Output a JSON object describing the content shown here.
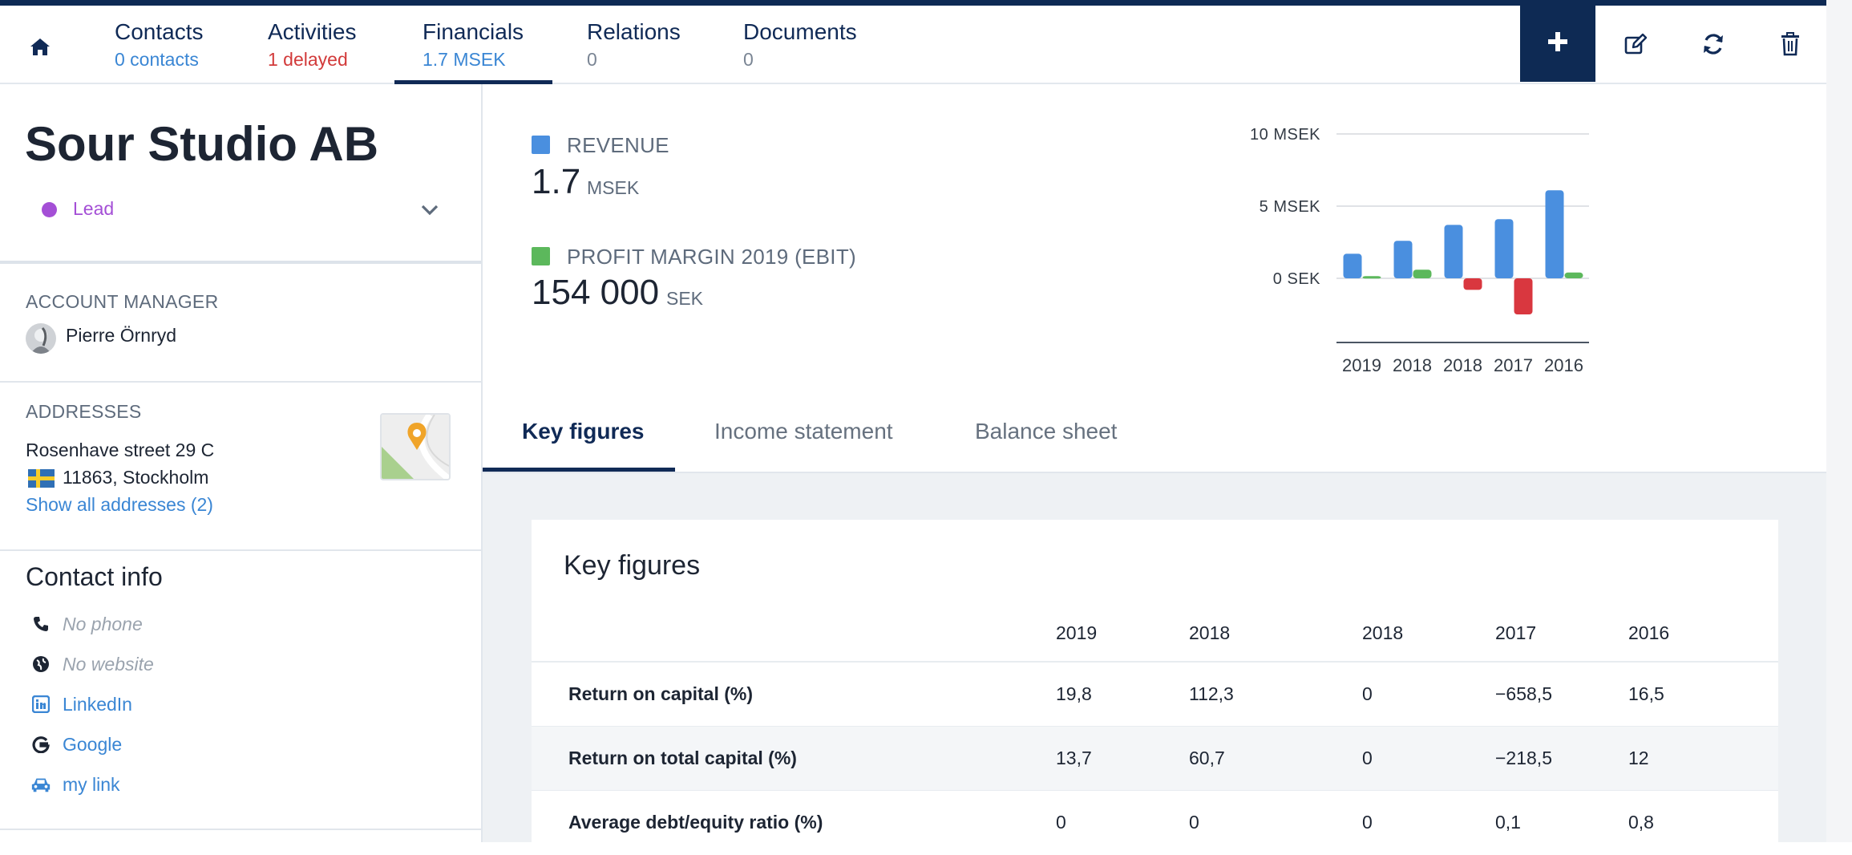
{
  "nav": {
    "tabs": [
      {
        "label": "Contacts",
        "sub": "0 contacts",
        "sub_color": "blue"
      },
      {
        "label": "Activities",
        "sub": "1 delayed",
        "sub_color": "red"
      },
      {
        "label": "Financials",
        "sub": "1.7 MSEK",
        "sub_color": "blue",
        "active": true
      },
      {
        "label": "Relations",
        "sub": "0",
        "sub_color": "grey"
      },
      {
        "label": "Documents",
        "sub": "0",
        "sub_color": "grey"
      }
    ],
    "actions": [
      "plus-icon",
      "edit-icon",
      "refresh-icon",
      "trash-icon"
    ]
  },
  "company": {
    "name": "Sour Studio AB",
    "status": "Lead",
    "status_color": "#a44fd6"
  },
  "account_manager": {
    "label": "ACCOUNT MANAGER",
    "name": "Pierre Örnryd"
  },
  "addresses": {
    "label": "ADDRESSES",
    "street": "Rosenhave street 29 C",
    "city_line": "11863, Stockholm",
    "country_flag": "sweden-flag",
    "show_all": "Show all addresses (2)"
  },
  "contact_info": {
    "title": "Contact info",
    "phone": "No phone",
    "website": "No website",
    "links": [
      "LinkedIn",
      "Google",
      "my link"
    ]
  },
  "kpis": {
    "revenue": {
      "label": "REVENUE",
      "value": "1.7",
      "unit": "MSEK",
      "color": "#4a8fdf"
    },
    "profit": {
      "label": "PROFIT MARGIN 2019 (EBIT)",
      "value": "154 000",
      "unit": "SEK",
      "color": "#5cb85c"
    }
  },
  "chart_data": {
    "type": "bar",
    "categories": [
      "2019",
      "2018",
      "2018",
      "2017",
      "2016"
    ],
    "series": [
      {
        "values": [
          1.7,
          2.6,
          3.7,
          4.1,
          6.1
        ],
        "color": "#4a8fdf"
      },
      {
        "values": [
          0.15,
          0.6,
          -0.8,
          -2.5,
          0.4
        ],
        "color_positive": "#5cb85c",
        "color_negative": "#d9373f"
      }
    ],
    "yticks": [
      "10 MSEK",
      "5 MSEK",
      "0 SEK"
    ],
    "ytick_values": [
      10,
      5,
      0
    ],
    "ylim": [
      -5,
      10
    ],
    "grid": true
  },
  "sub_tabs": [
    "Key figures",
    "Income statement",
    "Balance sheet"
  ],
  "key_figures": {
    "title": "Key figures",
    "years": [
      "2019",
      "2018",
      "2018",
      "2017",
      "2016"
    ],
    "rows": [
      {
        "label": "Return on capital (%)",
        "values": [
          "19,8",
          "112,3",
          "0",
          "−658,5",
          "16,5"
        ]
      },
      {
        "label": "Return on total capital (%)",
        "values": [
          "13,7",
          "60,7",
          "0",
          "−218,5",
          "12"
        ]
      },
      {
        "label": "Average debt/equity ratio (%)",
        "values": [
          "0",
          "0",
          "0",
          "0,1",
          "0,8"
        ]
      }
    ]
  }
}
